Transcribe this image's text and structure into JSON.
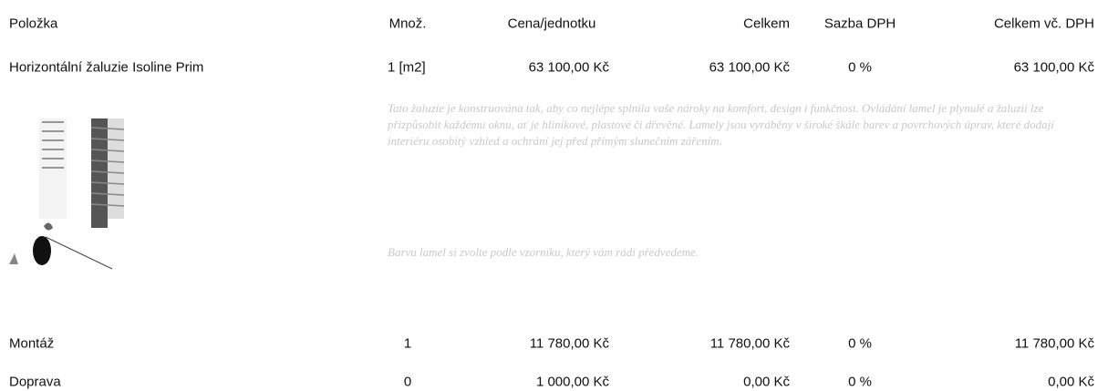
{
  "table": {
    "header": [
      "Položka",
      "Množ.",
      "Cena/jednotku",
      "Celkem",
      "Sazba DPH",
      "Celkem vč. DPH"
    ],
    "rows": [
      [
        "Horizontální žaluzie Isoline Prim",
        "1 [m2]",
        "63 100,00 Kč",
        "63 100,00 Kč",
        "0 %",
        "63 100,00 Kč"
      ],
      [
        "Montáž",
        "1",
        "11 780,00 Kč",
        "11 780,00 Kč",
        "0 %",
        "11 780,00 Kč"
      ],
      [
        "Doprava",
        "0",
        "1 000,00 Kč",
        "0,00 Kč",
        "0 %",
        "0,00 Kč"
      ]
    ]
  },
  "description": [
    "Tato žaluzie je konstruována tak, aby co nejlépe splnila vaše nároky na komfort, design i funkčnost. Ovládání lamel je plynulé a žaluzii lze přizpůsobit každému oknu, ať je hliníkové, plastové či dřevěné. Lamely jsou vyráběny v široké škále barev a povrchových úprav, které dodají interiéru osobitý vzhled a ochrání jej před přímým slunečním zářením.",
    "Barvu lamel si zvolte podle vzorníku, který vám rádi předvedeme."
  ]
}
